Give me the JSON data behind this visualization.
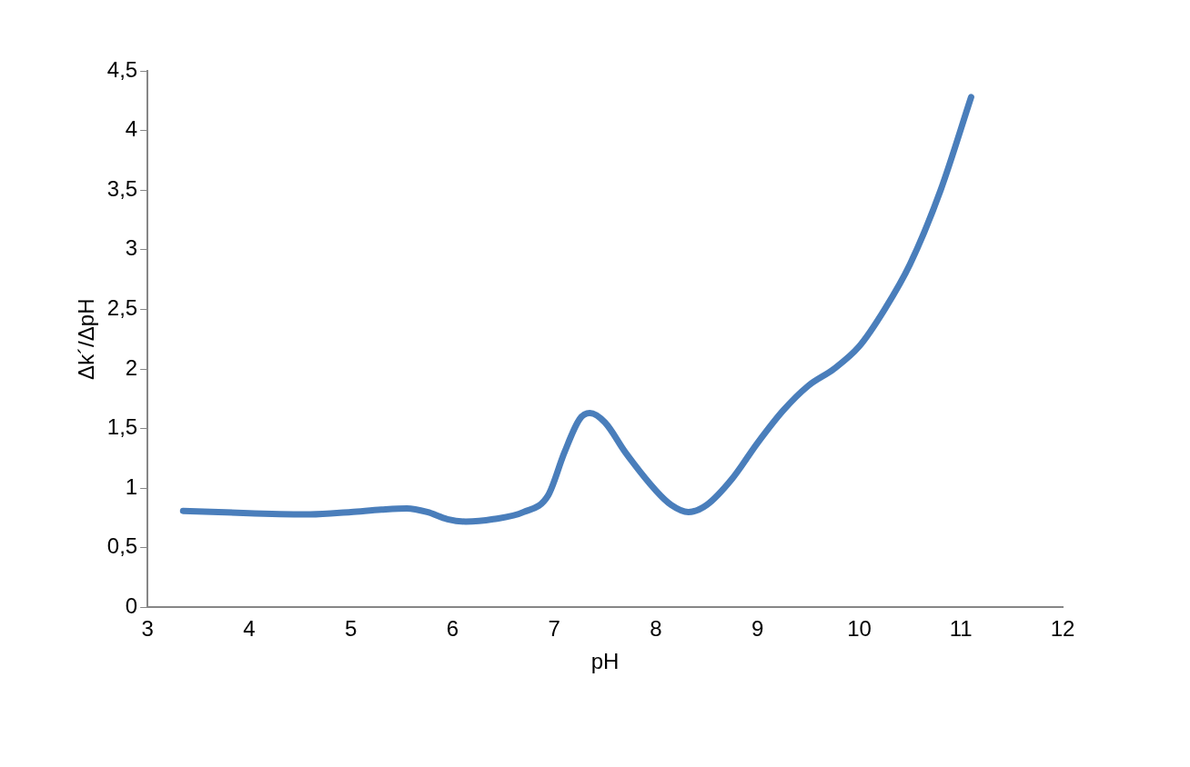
{
  "chart_data": {
    "type": "line",
    "xlabel": "pH",
    "ylabel": "Δk´/ΔpH",
    "xlim": [
      3,
      12
    ],
    "xticks": [
      3,
      4,
      5,
      6,
      7,
      8,
      9,
      10,
      11,
      12
    ],
    "ylim": [
      0,
      4.5
    ],
    "yticks": [
      0,
      {
        "value": 0.5,
        "label": "0,5"
      },
      1,
      {
        "value": 1.5,
        "label": "1,5"
      },
      2,
      {
        "value": 2.5,
        "label": "2,5"
      },
      3,
      {
        "value": 3.5,
        "label": "3,5"
      },
      4,
      {
        "value": 4.5,
        "label": "4,5"
      }
    ],
    "grid": false,
    "legend": false,
    "marker": "none",
    "line_style": "solid",
    "series": [
      {
        "color": "#4a7ebb",
        "x": [
          3.35,
          4.0,
          4.6,
          5.0,
          5.3,
          5.55,
          5.75,
          5.95,
          6.13,
          6.4,
          6.7,
          6.94,
          7.1,
          7.25,
          7.35,
          7.5,
          7.7,
          8.0,
          8.15,
          8.32,
          8.5,
          8.75,
          9.0,
          9.25,
          9.5,
          9.75,
          10.0,
          10.25,
          10.5,
          10.8,
          11.1
        ],
        "values": [
          0.81,
          0.79,
          0.78,
          0.8,
          0.82,
          0.83,
          0.8,
          0.74,
          0.72,
          0.74,
          0.8,
          0.94,
          1.3,
          1.58,
          1.63,
          1.55,
          1.3,
          0.98,
          0.86,
          0.8,
          0.86,
          1.08,
          1.38,
          1.65,
          1.86,
          2.0,
          2.19,
          2.5,
          2.88,
          3.5,
          4.28
        ]
      }
    ]
  }
}
